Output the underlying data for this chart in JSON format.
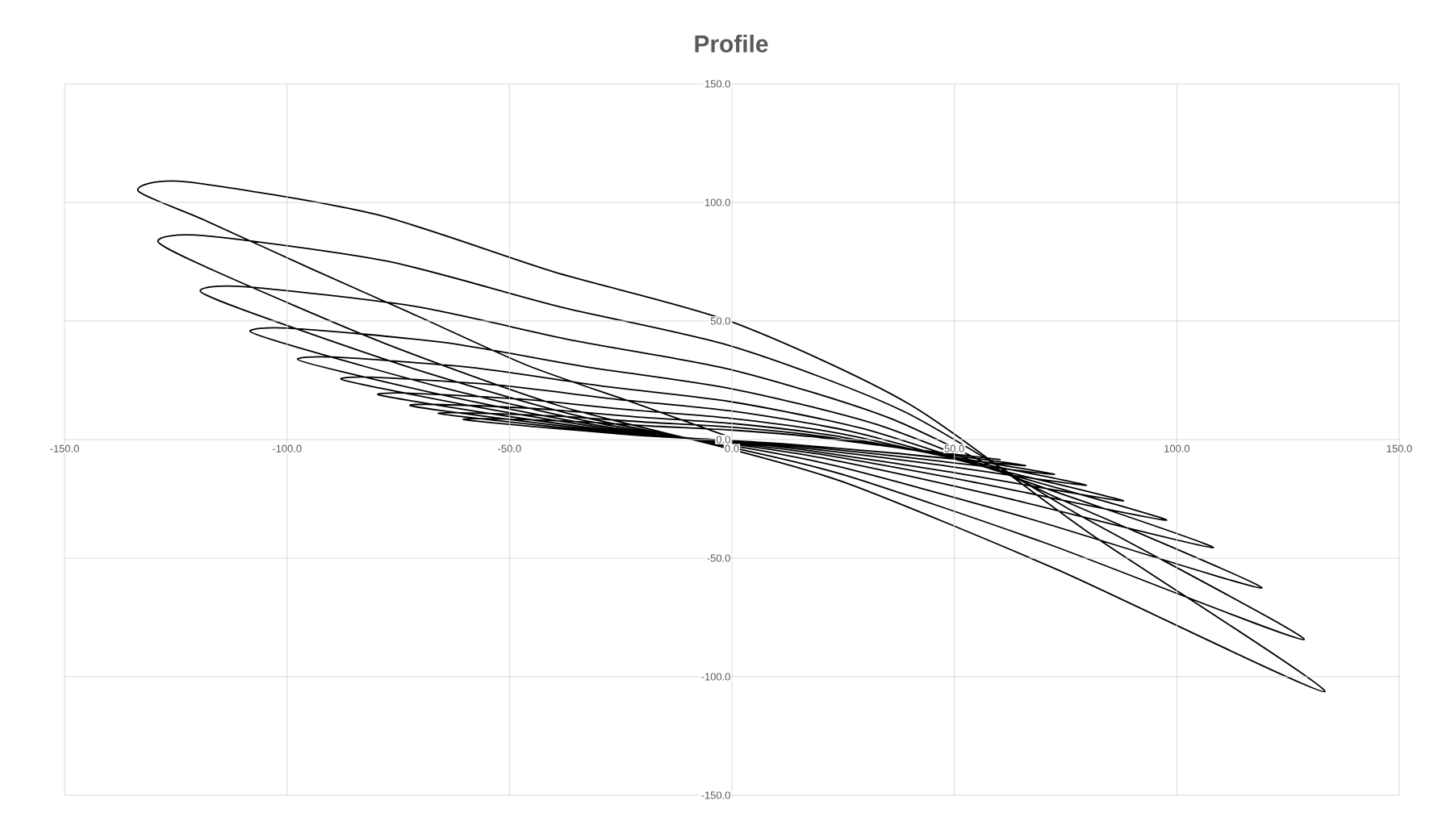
{
  "chart_data": {
    "type": "line",
    "title": "Profile",
    "x": [
      0,
      -21.9,
      -46,
      -70.2,
      -94.5,
      -118.5,
      -133.5,
      -122.8,
      -80.1,
      -40,
      0,
      40,
      80,
      133.3,
      73.3,
      26.7,
      0,
      -38.7,
      -77.4,
      -116.1,
      -129,
      -118.7,
      -77.4,
      -38.7,
      0,
      38.7,
      77.4,
      128.6,
      70.7,
      25.7,
      0,
      -35.9,
      -71.7,
      -107.6,
      -119.5,
      -109.9,
      -71.7,
      -35.9,
      0,
      35.8,
      71.5,
      119.1,
      65.5,
      23.8,
      0,
      -32.5,
      -65,
      -97.5,
      -108.3,
      -99.6,
      -65,
      -32.5,
      0,
      32.5,
      64.9,
      108.2,
      59.5,
      21.6,
      0,
      -29.3,
      -58.6,
      -87.8,
      -97.6,
      -89.8,
      -58.6,
      -29.3,
      0,
      29.3,
      58.6,
      97.7,
      53.7,
      19.5,
      0,
      -26.4,
      -52.7,
      -79.1,
      -87.9,
      -80.9,
      -52.7,
      -26.4,
      0,
      26.4,
      52.8,
      88,
      48.4,
      17.6,
      0,
      -23.9,
      -47.8,
      -71.6,
      -79.6,
      -73.2,
      -47.8,
      -23.9,
      0,
      23.9,
      47.8,
      79.7,
      43.8,
      15.9,
      0,
      -21.7,
      -43.4,
      -65.2,
      -72.4,
      -66.6,
      -43.4,
      -21.7,
      0,
      21.7,
      43.5,
      72.5,
      39.9,
      14.5,
      0,
      -19.8,
      -39.6,
      -59.4,
      -66,
      -60.7,
      -39.6,
      -19.8,
      0,
      19.8,
      39.6,
      66,
      36.3,
      13.2,
      0,
      -18.1,
      -36.2,
      -54.4,
      -60.4,
      -55.6,
      -36.2,
      -18.1,
      0,
      18.1,
      36.2,
      60.4
    ],
    "values": [
      0.7,
      15.4,
      31.3,
      51.7,
      72,
      92.5,
      105,
      108.7,
      95,
      70.7,
      49.6,
      14.8,
      -39,
      -106.3,
      -55,
      -19,
      -4.2,
      14.2,
      40.1,
      71,
      83.5,
      86,
      75.2,
      56,
      39.3,
      11.8,
      -31.1,
      -84.3,
      -43.8,
      -15.2,
      -3.4,
      10.6,
      30,
      53.2,
      62.6,
      64.5,
      56.3,
      41.9,
      29.4,
      8.8,
      -23.2,
      -62.6,
      -32.6,
      -11.3,
      -2.5,
      7.8,
      21.9,
      38.8,
      45.6,
      47,
      41,
      30.6,
      21.4,
      6.4,
      -16.9,
      -45.6,
      -23.7,
      -8.2,
      -1.8,
      5.7,
      16.2,
      28.7,
      33.8,
      34.8,
      30.4,
      22.6,
      15.9,
      4.7,
      -12.6,
      -34,
      -17.7,
      -6.1,
      -1.4,
      4.3,
      12.2,
      21.7,
      25.5,
      26.3,
      23,
      17.1,
      12,
      3.6,
      -9.6,
      -25.9,
      -13.5,
      -4.7,
      -1,
      3.2,
      9.1,
      16.2,
      19,
      19.6,
      17.1,
      12.7,
      8.9,
      2.7,
      -7.1,
      -19.3,
      -10,
      -3.5,
      -0.8,
      2.4,
      6.9,
      12.2,
      14.4,
      14.8,
      13,
      9.6,
      6.8,
      2,
      -5.4,
      -14.7,
      -7.6,
      -2.6,
      -0.6,
      1.9,
      5.3,
      9.4,
      11,
      11.3,
      9.9,
      7.4,
      5.2,
      1.5,
      -4.1,
      -11,
      -5.7,
      -2,
      -0.4,
      1.4,
      4.1,
      7.2,
      8.5,
      8.8,
      7.7,
      5.7,
      4,
      1.2,
      -3.1,
      -8.5
    ],
    "color": "#000000",
    "marker": "none",
    "line_style": "solid",
    "grid": true,
    "xlim": [
      -150,
      150
    ],
    "ylim": [
      -150,
      150
    ],
    "xticks": [
      {
        "value": -150,
        "label": "-150.0"
      },
      {
        "value": -100,
        "label": "-100.0"
      },
      {
        "value": -50,
        "label": "-50.0"
      },
      {
        "value": 0,
        "label": "0.0"
      },
      {
        "value": 50,
        "label": "50.0"
      },
      {
        "value": 100,
        "label": "100.0"
      },
      {
        "value": 150,
        "label": "150.0"
      }
    ],
    "yticks": [
      {
        "value": -150,
        "label": "-150.0"
      },
      {
        "value": -100,
        "label": "-100.0"
      },
      {
        "value": -50,
        "label": "-50.0"
      },
      {
        "value": 0,
        "label": "0.0"
      },
      {
        "value": 50,
        "label": "50.0"
      },
      {
        "value": 100,
        "label": "100.0"
      },
      {
        "value": 150,
        "label": "150.0"
      }
    ]
  }
}
